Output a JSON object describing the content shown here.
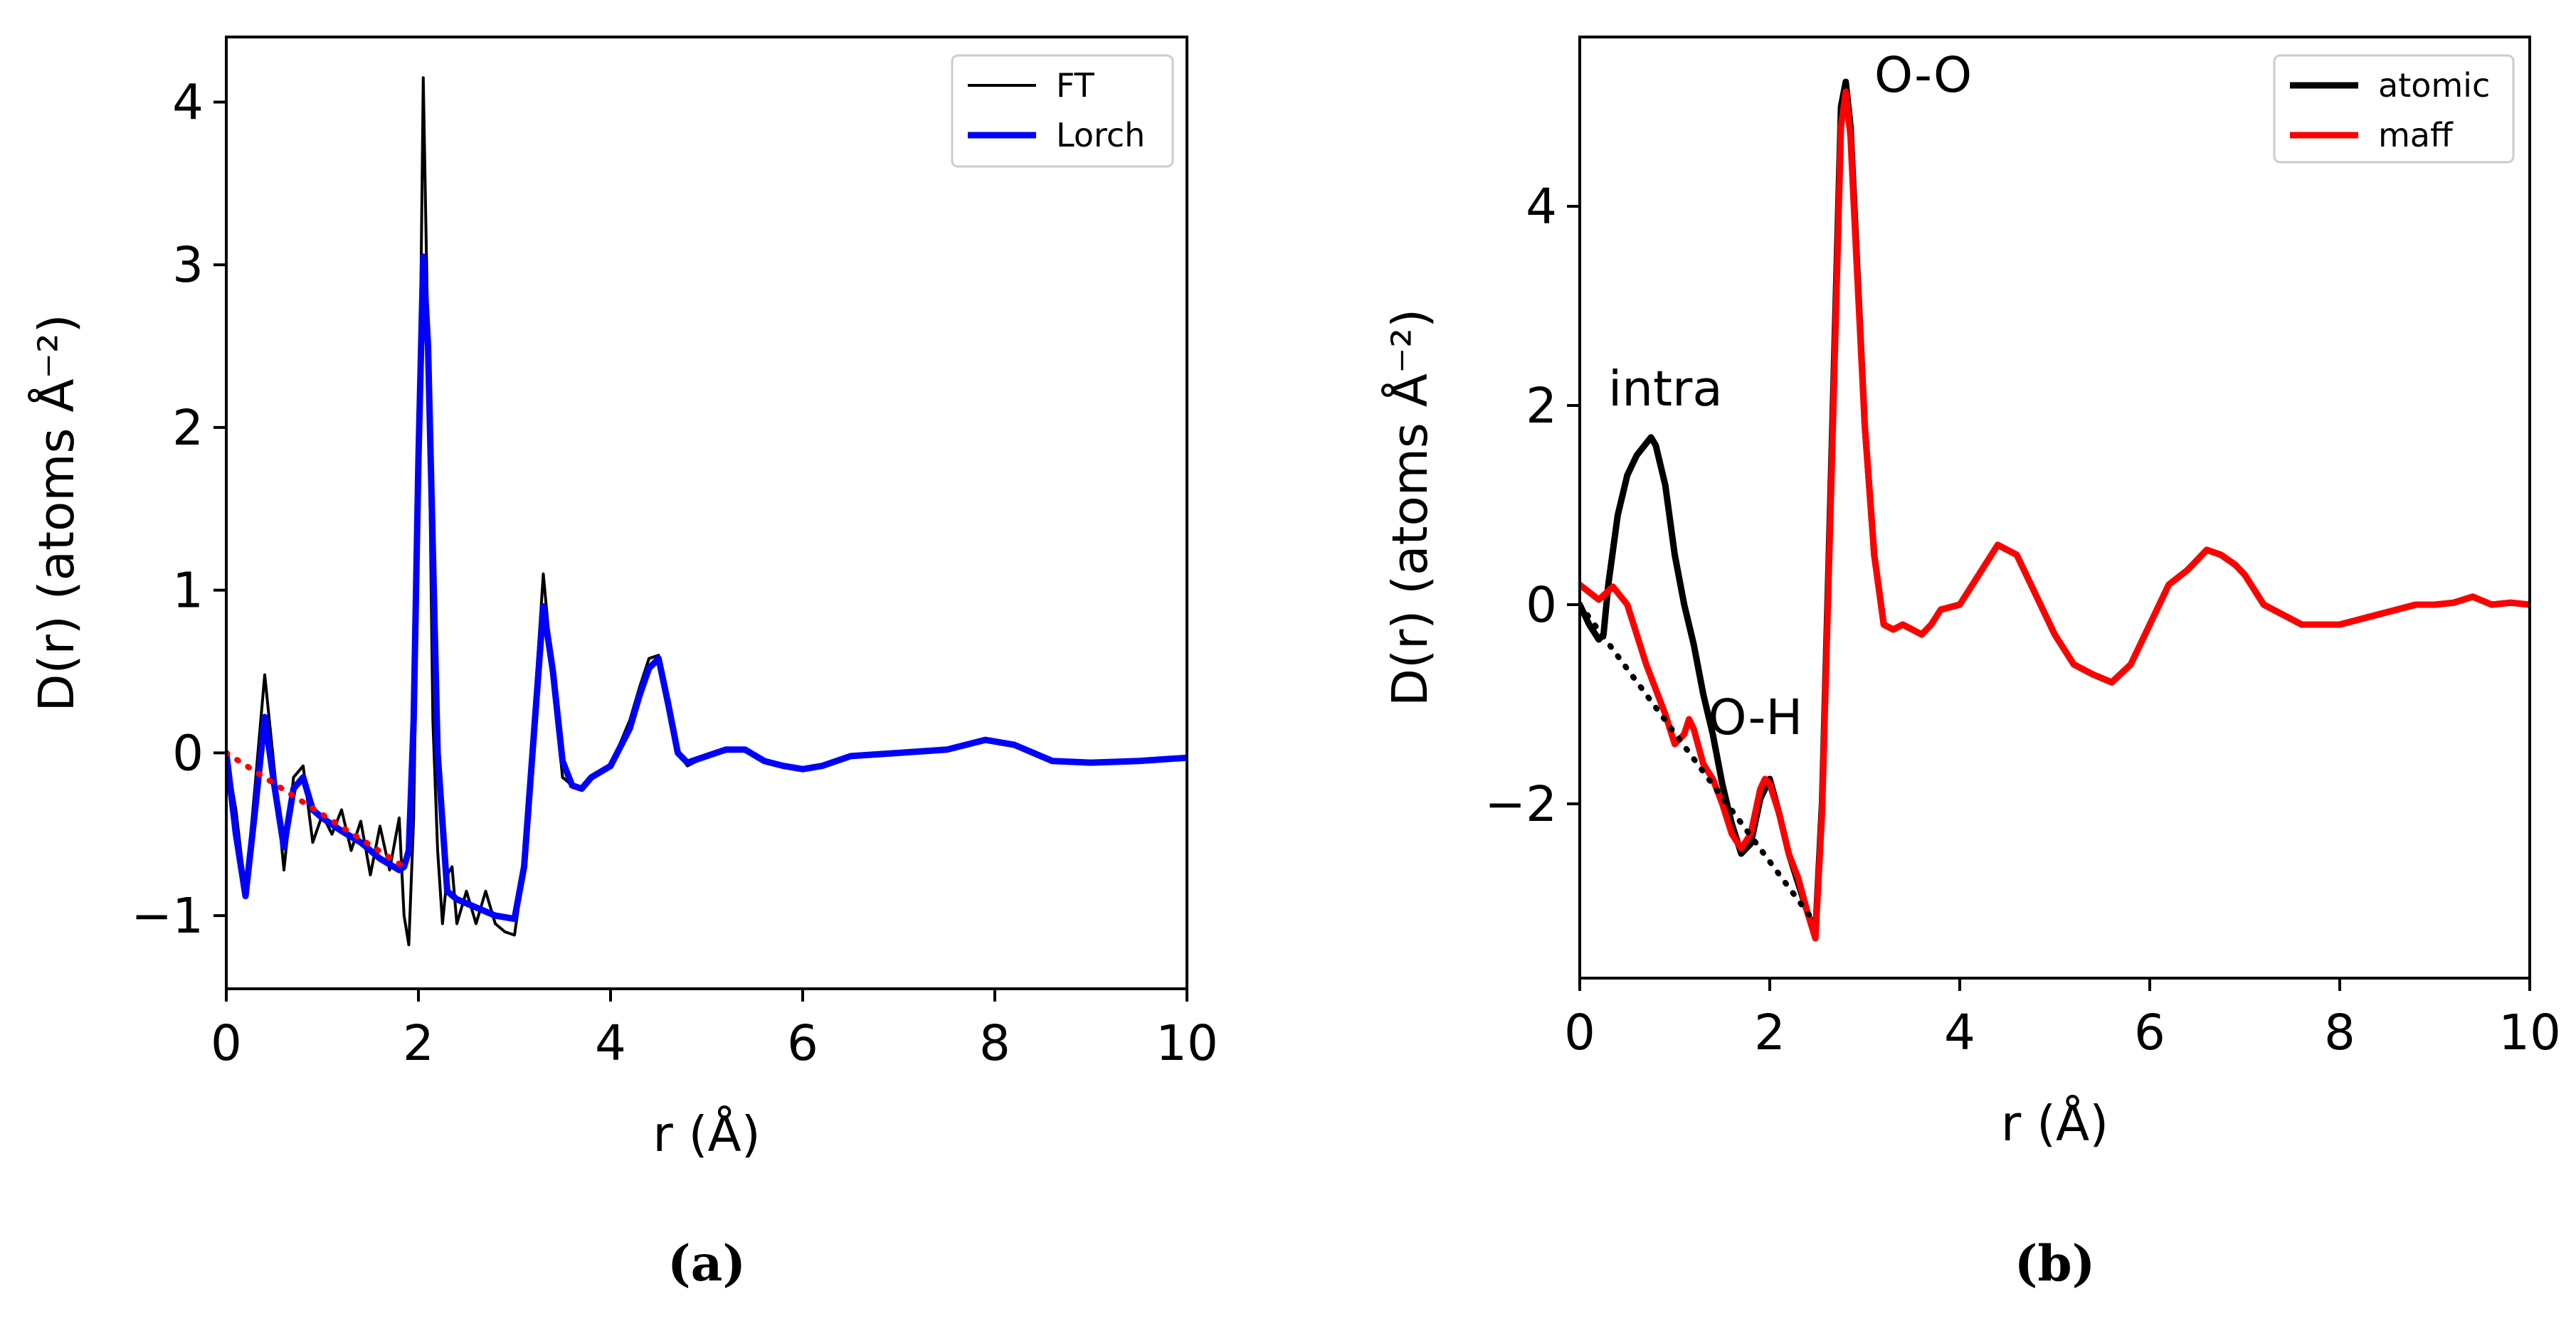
{
  "chart_data": [
    {
      "type": "line",
      "panel_label": "(a)",
      "xlabel": "r (Å)",
      "ylabel": "D(r) (atoms Å⁻²)",
      "xlim": [
        0,
        10
      ],
      "ylim": [
        -1.45,
        4.4
      ],
      "xticks": [
        0,
        2,
        4,
        6,
        8,
        10
      ],
      "yticks": [
        -1,
        0,
        1,
        2,
        3,
        4
      ],
      "legend_position": "top-right",
      "series": [
        {
          "name": "FT",
          "color": "#000000",
          "style": "solid-thin",
          "x": [
            0,
            0.1,
            0.2,
            0.3,
            0.4,
            0.5,
            0.6,
            0.7,
            0.8,
            0.9,
            1.0,
            1.1,
            1.2,
            1.3,
            1.4,
            1.5,
            1.6,
            1.7,
            1.8,
            1.85,
            1.9,
            1.95,
            2.0,
            2.05,
            2.1,
            2.15,
            2.2,
            2.25,
            2.3,
            2.35,
            2.4,
            2.5,
            2.6,
            2.7,
            2.8,
            2.9,
            3.0,
            3.1,
            3.2,
            3.3,
            3.4,
            3.5,
            3.6,
            3.7,
            3.8,
            4.0,
            4.2,
            4.3,
            4.4,
            4.5,
            4.6,
            4.7,
            4.8,
            5.0,
            5.2,
            5.4,
            5.6,
            5.8,
            6.0,
            6.2,
            6.5,
            7.0,
            7.5,
            7.9,
            8.2,
            8.6,
            9.0,
            9.5,
            10.0
          ],
          "y": [
            0,
            -0.35,
            -0.85,
            -0.2,
            0.48,
            -0.1,
            -0.72,
            -0.15,
            -0.08,
            -0.55,
            -0.38,
            -0.5,
            -0.35,
            -0.6,
            -0.42,
            -0.75,
            -0.45,
            -0.72,
            -0.4,
            -1.0,
            -1.18,
            -0.4,
            1.5,
            4.15,
            2.5,
            0.2,
            -0.6,
            -1.05,
            -0.75,
            -0.7,
            -1.05,
            -0.85,
            -1.05,
            -0.85,
            -1.05,
            -1.1,
            -1.12,
            -0.7,
            0.2,
            1.1,
            0.45,
            -0.15,
            -0.2,
            -0.22,
            -0.15,
            -0.08,
            0.2,
            0.4,
            0.58,
            0.6,
            0.3,
            0.0,
            -0.08,
            -0.02,
            0.02,
            0.02,
            -0.05,
            -0.08,
            -0.1,
            -0.08,
            -0.02,
            0.0,
            0.02,
            0.08,
            0.05,
            -0.05,
            -0.06,
            -0.05,
            -0.03
          ]
        },
        {
          "name": "Lorch",
          "color": "#0000ff",
          "style": "solid-thick",
          "x": [
            0,
            0.1,
            0.2,
            0.3,
            0.4,
            0.5,
            0.6,
            0.7,
            0.8,
            0.9,
            1.0,
            1.2,
            1.4,
            1.6,
            1.8,
            1.85,
            1.9,
            1.95,
            2.0,
            2.05,
            2.1,
            2.2,
            2.3,
            2.4,
            2.6,
            2.8,
            3.0,
            3.1,
            3.2,
            3.3,
            3.4,
            3.5,
            3.6,
            3.7,
            3.8,
            4.0,
            4.2,
            4.3,
            4.4,
            4.5,
            4.6,
            4.7,
            4.8,
            5.0,
            5.2,
            5.4,
            5.6,
            5.8,
            6.0,
            6.2,
            6.5,
            7.0,
            7.5,
            7.9,
            8.2,
            8.6,
            9.0,
            9.5,
            10.0
          ],
          "y": [
            0,
            -0.5,
            -0.88,
            -0.35,
            0.22,
            -0.2,
            -0.58,
            -0.22,
            -0.15,
            -0.35,
            -0.4,
            -0.48,
            -0.55,
            -0.65,
            -0.72,
            -0.7,
            -0.6,
            0.2,
            1.8,
            3.05,
            2.5,
            0.0,
            -0.85,
            -0.9,
            -0.95,
            -1.0,
            -1.02,
            -0.7,
            0.1,
            0.9,
            0.5,
            -0.05,
            -0.2,
            -0.22,
            -0.15,
            -0.08,
            0.15,
            0.35,
            0.52,
            0.58,
            0.3,
            0.0,
            -0.06,
            -0.02,
            0.02,
            0.02,
            -0.05,
            -0.08,
            -0.1,
            -0.08,
            -0.02,
            0.0,
            0.02,
            0.08,
            0.05,
            -0.05,
            -0.06,
            -0.05,
            -0.03
          ]
        },
        {
          "name": "",
          "color": "#ff0000",
          "style": "dotted",
          "legend": false,
          "x": [
            0,
            1.85
          ],
          "y": [
            0,
            -0.7
          ]
        }
      ]
    },
    {
      "type": "line",
      "panel_label": "(b)",
      "xlabel": "r (Å)",
      "ylabel": "D(r) (atoms Å⁻²)",
      "xlim": [
        0,
        10
      ],
      "ylim": [
        -3.75,
        5.7
      ],
      "xticks": [
        0,
        2,
        4,
        6,
        8,
        10
      ],
      "yticks": [
        -2,
        0,
        2,
        4
      ],
      "legend_position": "top-right",
      "annotations": [
        {
          "text": "intra",
          "x": 0.3,
          "y": 2.0
        },
        {
          "text": "O-H",
          "x": 1.35,
          "y": -1.3
        },
        {
          "text": "O-O",
          "x": 3.1,
          "y": 5.15
        }
      ],
      "series": [
        {
          "name": "atomic",
          "color": "#000000",
          "style": "solid-thick",
          "x": [
            0,
            0.1,
            0.2,
            0.25,
            0.3,
            0.4,
            0.5,
            0.6,
            0.7,
            0.75,
            0.8,
            0.9,
            1.0,
            1.1,
            1.2,
            1.3,
            1.4,
            1.5,
            1.6,
            1.7,
            1.8,
            1.9,
            2.0,
            2.1,
            2.2,
            2.3,
            2.4,
            2.48,
            2.55,
            2.65,
            2.75,
            2.8,
            2.85,
            2.9,
            3.0,
            3.1,
            3.2,
            3.3,
            3.4,
            3.5,
            3.6,
            3.7,
            3.8,
            4.0,
            4.2,
            4.4,
            4.6,
            4.8,
            5.0,
            5.2,
            5.4,
            5.6,
            5.8,
            6.0,
            6.2,
            6.4,
            6.6,
            6.75,
            6.9,
            7.0,
            7.2,
            7.4,
            7.6,
            7.8,
            8.0,
            8.2,
            8.4,
            8.6,
            8.8,
            9.0,
            9.2,
            9.4,
            9.6,
            9.8,
            10.0
          ],
          "y": [
            0,
            -0.2,
            -0.35,
            -0.3,
            0.2,
            0.9,
            1.3,
            1.5,
            1.62,
            1.68,
            1.6,
            1.2,
            0.5,
            0.0,
            -0.4,
            -0.9,
            -1.3,
            -1.8,
            -2.2,
            -2.5,
            -2.4,
            -1.95,
            -1.75,
            -2.1,
            -2.5,
            -2.8,
            -3.1,
            -3.3,
            -2.0,
            1.5,
            5.0,
            5.25,
            4.8,
            3.8,
            1.8,
            0.5,
            -0.2,
            -0.25,
            -0.2,
            -0.25,
            -0.3,
            -0.2,
            -0.05,
            0.0,
            0.3,
            0.6,
            0.5,
            0.1,
            -0.3,
            -0.6,
            -0.7,
            -0.78,
            -0.6,
            -0.2,
            0.2,
            0.35,
            0.55,
            0.5,
            0.4,
            0.3,
            0.0,
            -0.1,
            -0.2,
            -0.2,
            -0.2,
            -0.15,
            -0.1,
            -0.05,
            0.0,
            0.0,
            0.02,
            0.08,
            0.0,
            0.02,
            0.0
          ]
        },
        {
          "name": "maff",
          "color": "#ff0000",
          "style": "solid-thick",
          "x": [
            0,
            0.2,
            0.35,
            0.5,
            0.6,
            0.7,
            0.8,
            0.9,
            1.0,
            1.1,
            1.15,
            1.2,
            1.3,
            1.4,
            1.5,
            1.6,
            1.7,
            1.8,
            1.9,
            1.95,
            2.0,
            2.1,
            2.2,
            2.3,
            2.4,
            2.48,
            2.55,
            2.65,
            2.75,
            2.8,
            2.85,
            2.9,
            3.0,
            3.1,
            3.2,
            3.3,
            3.4,
            3.5,
            3.6,
            3.7,
            3.8,
            4.0,
            4.2,
            4.4,
            4.6,
            4.8,
            5.0,
            5.2,
            5.4,
            5.6,
            5.8,
            6.0,
            6.2,
            6.4,
            6.6,
            6.75,
            6.9,
            7.0,
            7.2,
            7.4,
            7.6,
            7.8,
            8.0,
            8.2,
            8.4,
            8.6,
            8.8,
            9.0,
            9.2,
            9.4,
            9.6,
            9.8,
            10.0
          ],
          "y": [
            0.2,
            0.05,
            0.18,
            0.0,
            -0.3,
            -0.6,
            -0.85,
            -1.1,
            -1.4,
            -1.3,
            -1.15,
            -1.25,
            -1.6,
            -1.75,
            -2.0,
            -2.3,
            -2.45,
            -2.3,
            -1.85,
            -1.75,
            -1.8,
            -2.1,
            -2.5,
            -2.75,
            -3.1,
            -3.35,
            -2.1,
            1.3,
            4.8,
            5.15,
            4.7,
            3.7,
            1.8,
            0.5,
            -0.2,
            -0.25,
            -0.2,
            -0.25,
            -0.3,
            -0.2,
            -0.05,
            0.0,
            0.3,
            0.6,
            0.5,
            0.1,
            -0.3,
            -0.6,
            -0.7,
            -0.78,
            -0.6,
            -0.2,
            0.2,
            0.35,
            0.55,
            0.5,
            0.4,
            0.3,
            0.0,
            -0.1,
            -0.2,
            -0.2,
            -0.2,
            -0.15,
            -0.1,
            -0.05,
            0.0,
            0.0,
            0.02,
            0.08,
            0.0,
            0.02,
            0.0
          ]
        },
        {
          "name": "",
          "color": "#000000",
          "style": "dotted",
          "legend": false,
          "x": [
            0,
            2.48
          ],
          "y": [
            0,
            -3.2
          ]
        }
      ]
    }
  ]
}
